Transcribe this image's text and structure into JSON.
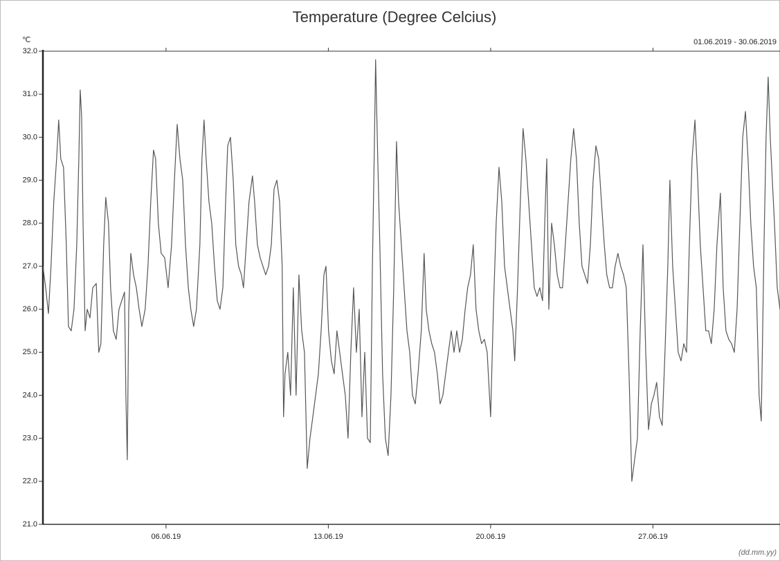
{
  "chart_data": {
    "type": "line",
    "title": "Temperature (Degree Celcius)",
    "y_unit": "℃",
    "date_range": "01.06.2019 - 30.06.2019",
    "x_format": "(dd.mm.yy)",
    "color": "#555555",
    "xlim": [
      0.69,
      32.48
    ],
    "xticks": [
      {
        "value": 6,
        "label": "06.06.19"
      },
      {
        "value": 13,
        "label": "13.06.19"
      },
      {
        "value": 20,
        "label": "20.06.19"
      },
      {
        "value": 27,
        "label": "27.06.19"
      }
    ],
    "ylim": [
      21,
      32
    ],
    "yticks": [
      {
        "value": 21,
        "label": "21.0"
      },
      {
        "value": 22,
        "label": "22.0"
      },
      {
        "value": 23,
        "label": "23.0"
      },
      {
        "value": 24,
        "label": "24.0"
      },
      {
        "value": 25,
        "label": "25.0"
      },
      {
        "value": 26,
        "label": "26.0"
      },
      {
        "value": 27,
        "label": "27.0"
      },
      {
        "value": 28,
        "label": "28.0"
      },
      {
        "value": 29,
        "label": "29.0"
      },
      {
        "value": 30,
        "label": "30.0"
      },
      {
        "value": 31,
        "label": "31.0"
      },
      {
        "value": 32,
        "label": "32.0"
      }
    ],
    "x": [
      0.69,
      0.81,
      0.93,
      1.04,
      1.16,
      1.28,
      1.37,
      1.46,
      1.58,
      1.7,
      1.79,
      1.91,
      2.03,
      2.15,
      2.24,
      2.3,
      2.36,
      2.42,
      2.51,
      2.6,
      2.72,
      2.84,
      2.99,
      3.1,
      3.19,
      3.31,
      3.4,
      3.52,
      3.61,
      3.73,
      3.85,
      3.97,
      4.09,
      4.21,
      4.27,
      4.33,
      4.39,
      4.48,
      4.6,
      4.72,
      4.84,
      4.96,
      5.1,
      5.22,
      5.34,
      5.46,
      5.55,
      5.67,
      5.79,
      5.94,
      6.09,
      6.24,
      6.36,
      6.48,
      6.6,
      6.72,
      6.84,
      6.96,
      7.07,
      7.19,
      7.31,
      7.46,
      7.55,
      7.64,
      7.73,
      7.85,
      7.97,
      8.09,
      8.21,
      8.33,
      8.45,
      8.57,
      8.66,
      8.78,
      8.9,
      9.01,
      9.13,
      9.25,
      9.34,
      9.46,
      9.58,
      9.73,
      9.82,
      9.94,
      10.06,
      10.18,
      10.3,
      10.42,
      10.54,
      10.66,
      10.78,
      10.9,
      11.01,
      11.07,
      11.13,
      11.25,
      11.37,
      11.49,
      11.61,
      11.73,
      11.85,
      11.97,
      12.09,
      12.21,
      12.33,
      12.45,
      12.57,
      12.69,
      12.81,
      12.9,
      13.01,
      13.13,
      13.25,
      13.37,
      13.49,
      13.61,
      13.73,
      13.85,
      13.97,
      14.09,
      14.21,
      14.33,
      14.45,
      14.57,
      14.69,
      14.81,
      14.9,
      14.99,
      15.04,
      15.13,
      15.22,
      15.34,
      15.46,
      15.58,
      15.7,
      15.82,
      15.94,
      16.03,
      16.15,
      16.27,
      16.39,
      16.51,
      16.63,
      16.75,
      16.87,
      17.01,
      17.13,
      17.22,
      17.34,
      17.46,
      17.58,
      17.7,
      17.82,
      17.94,
      18.06,
      18.18,
      18.3,
      18.42,
      18.54,
      18.66,
      18.78,
      18.9,
      19.01,
      19.13,
      19.25,
      19.37,
      19.49,
      19.61,
      19.73,
      19.85,
      20.0,
      20.12,
      20.24,
      20.36,
      20.48,
      20.6,
      20.72,
      20.84,
      20.96,
      21.04,
      21.16,
      21.28,
      21.4,
      21.52,
      21.64,
      21.76,
      21.88,
      22.0,
      22.12,
      22.24,
      22.36,
      22.42,
      22.51,
      22.63,
      22.75,
      22.87,
      22.99,
      23.1,
      23.22,
      23.34,
      23.46,
      23.58,
      23.7,
      23.82,
      23.94,
      24.06,
      24.18,
      24.3,
      24.42,
      24.54,
      24.66,
      24.78,
      24.9,
      25.01,
      25.13,
      25.25,
      25.37,
      25.49,
      25.61,
      25.73,
      25.85,
      25.97,
      26.09,
      26.21,
      26.33,
      26.45,
      26.57,
      26.69,
      26.81,
      26.93,
      27.04,
      27.16,
      27.28,
      27.4,
      27.52,
      27.64,
      27.73,
      27.85,
      27.97,
      28.09,
      28.21,
      28.33,
      28.45,
      28.57,
      28.69,
      28.81,
      28.93,
      29.04,
      29.16,
      29.28,
      29.4,
      29.52,
      29.64,
      29.76,
      29.91,
      30.03,
      30.15,
      30.27,
      30.39,
      30.51,
      30.63,
      30.75,
      30.87,
      30.99,
      31.1,
      31.22,
      31.34,
      31.46,
      31.58,
      31.67,
      31.79,
      31.88,
      31.97,
      32.06,
      32.15,
      32.24,
      32.36,
      32.48
    ],
    "values": [
      27.0,
      26.5,
      25.9,
      27.0,
      28.5,
      29.5,
      30.4,
      29.5,
      29.3,
      27.5,
      25.6,
      25.5,
      26.0,
      27.5,
      29.5,
      31.1,
      30.5,
      28.0,
      25.5,
      26.0,
      25.8,
      26.5,
      26.6,
      25.0,
      25.2,
      27.5,
      28.6,
      28.0,
      26.5,
      25.5,
      25.3,
      26.0,
      26.2,
      26.4,
      24.0,
      22.5,
      26.0,
      27.3,
      26.8,
      26.5,
      26.0,
      25.6,
      26.0,
      27.0,
      28.5,
      29.7,
      29.5,
      28.0,
      27.3,
      27.2,
      26.5,
      27.5,
      29.0,
      30.3,
      29.5,
      29.0,
      27.5,
      26.5,
      26.0,
      25.6,
      26.0,
      27.5,
      29.5,
      30.4,
      29.5,
      28.5,
      28.0,
      27.0,
      26.2,
      26.0,
      26.5,
      28.5,
      29.8,
      30.0,
      29.0,
      27.5,
      27.0,
      26.8,
      26.5,
      27.5,
      28.5,
      29.1,
      28.5,
      27.5,
      27.2,
      27.0,
      26.8,
      27.0,
      27.5,
      28.8,
      29.0,
      28.5,
      27.0,
      23.5,
      24.5,
      25.0,
      24.0,
      26.5,
      24.0,
      26.8,
      25.5,
      25.0,
      22.3,
      23.0,
      23.5,
      24.0,
      24.5,
      25.5,
      26.8,
      27.0,
      25.5,
      24.8,
      24.5,
      25.5,
      25.0,
      24.5,
      24.0,
      23.0,
      25.0,
      26.5,
      25.0,
      26.0,
      23.5,
      25.0,
      23.0,
      22.9,
      27.0,
      30.0,
      31.8,
      29.5,
      27.5,
      24.5,
      23.0,
      22.6,
      24.0,
      26.5,
      29.9,
      28.5,
      27.5,
      26.5,
      25.5,
      25.0,
      24.0,
      23.8,
      24.5,
      25.5,
      27.3,
      26.0,
      25.5,
      25.2,
      25.0,
      24.5,
      23.8,
      24.0,
      24.5,
      25.0,
      25.5,
      25.0,
      25.5,
      25.0,
      25.3,
      26.0,
      26.5,
      26.8,
      27.5,
      26.0,
      25.5,
      25.2,
      25.3,
      25.0,
      23.5,
      26.0,
      28.0,
      29.3,
      28.5,
      27.0,
      26.5,
      26.0,
      25.5,
      24.8,
      26.5,
      28.5,
      30.2,
      29.5,
      28.5,
      27.5,
      26.5,
      26.3,
      26.5,
      26.2,
      28.5,
      29.5,
      26.0,
      28.0,
      27.5,
      26.8,
      26.5,
      26.5,
      27.5,
      28.5,
      29.5,
      30.2,
      29.5,
      28.0,
      27.0,
      26.8,
      26.6,
      27.5,
      29.0,
      29.8,
      29.5,
      28.5,
      27.5,
      26.8,
      26.5,
      26.5,
      27.0,
      27.3,
      27.0,
      26.8,
      26.5,
      24.5,
      22.0,
      22.5,
      23.0,
      25.5,
      27.5,
      25.0,
      23.2,
      23.8,
      24.0,
      24.3,
      23.5,
      23.3,
      25.0,
      27.0,
      29.0,
      27.0,
      26.0,
      25.0,
      24.8,
      25.2,
      25.0,
      27.5,
      29.5,
      30.4,
      29.0,
      27.5,
      26.5,
      25.5,
      25.5,
      25.2,
      26.0,
      27.5,
      28.7,
      26.5,
      25.5,
      25.3,
      25.2,
      25.0,
      26.0,
      28.0,
      30.0,
      30.6,
      29.5,
      28.0,
      27.0,
      26.5,
      24.0,
      23.4,
      27.5,
      30.0,
      31.4,
      30.0,
      29.0,
      28.0,
      26.5,
      26.0
    ]
  }
}
